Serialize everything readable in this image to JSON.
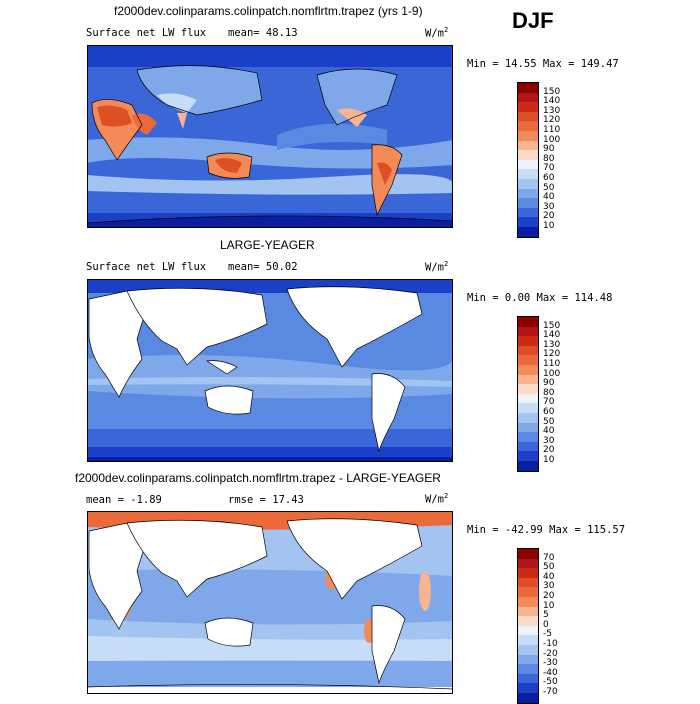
{
  "season": "DJF",
  "panels": [
    {
      "title": "f2000dev.colinparams.colinpatch.nomflrtm.trapez (yrs 1-9)",
      "variable": "Surface net LW flux",
      "stat1": "mean=  48.13",
      "stat2": "",
      "units": "W/m",
      "units_sup": "2",
      "minmax": "Min =  14.55 Max = 149.47",
      "colorbar": {
        "labels": [
          "150",
          "140",
          "130",
          "120",
          "110",
          "100",
          "90",
          "80",
          "70",
          "60",
          "50",
          "40",
          "30",
          "20",
          "10"
        ],
        "colors": [
          "#8b0000",
          "#b01616",
          "#cc2c16",
          "#dd4f24",
          "#ea6a3a",
          "#f38a58",
          "#f8b48f",
          "#fadac4",
          "#eef3fb",
          "#c7dcf6",
          "#a3c3f0",
          "#7ea8ea",
          "#5a89e2",
          "#3a66d8",
          "#1b40c8",
          "#0a1fa0"
        ]
      }
    },
    {
      "title": "LARGE-YEAGER",
      "variable": "Surface net LW flux",
      "stat1": "mean=  50.02",
      "stat2": "",
      "units": "W/m",
      "units_sup": "2",
      "minmax": "Min =   0.00 Max = 114.48",
      "colorbar": {
        "labels": [
          "150",
          "140",
          "130",
          "120",
          "110",
          "100",
          "90",
          "80",
          "70",
          "60",
          "50",
          "40",
          "30",
          "20",
          "10"
        ],
        "colors": [
          "#8b0000",
          "#b01616",
          "#cc2c16",
          "#dd4f24",
          "#ea6a3a",
          "#f38a58",
          "#f8b48f",
          "#fadac4",
          "#eef3fb",
          "#c7dcf6",
          "#a3c3f0",
          "#7ea8ea",
          "#5a89e2",
          "#3a66d8",
          "#1b40c8",
          "#0a1fa0"
        ]
      }
    },
    {
      "title": "f2000dev.colinparams.colinpatch.nomflrtm.trapez - LARGE-YEAGER",
      "variable": "",
      "stat1": "mean =  -1.89",
      "stat2": "rmse =  17.43",
      "units": "W/m",
      "units_sup": "2",
      "minmax": "Min = -42.99 Max = 115.57",
      "colorbar": {
        "labels": [
          "70",
          "50",
          "40",
          "30",
          "20",
          "10",
          "5",
          "0",
          "-5",
          "-10",
          "-20",
          "-30",
          "-40",
          "-50",
          "-70"
        ],
        "colors": [
          "#8b0000",
          "#b01616",
          "#cc2c16",
          "#dd4f24",
          "#ea6a3a",
          "#f38a58",
          "#f8b48f",
          "#fadac4",
          "#eef3fb",
          "#c7dcf6",
          "#a3c3f0",
          "#7ea8ea",
          "#5a89e2",
          "#3a66d8",
          "#1b40c8",
          "#0a1fa0"
        ]
      }
    }
  ]
}
